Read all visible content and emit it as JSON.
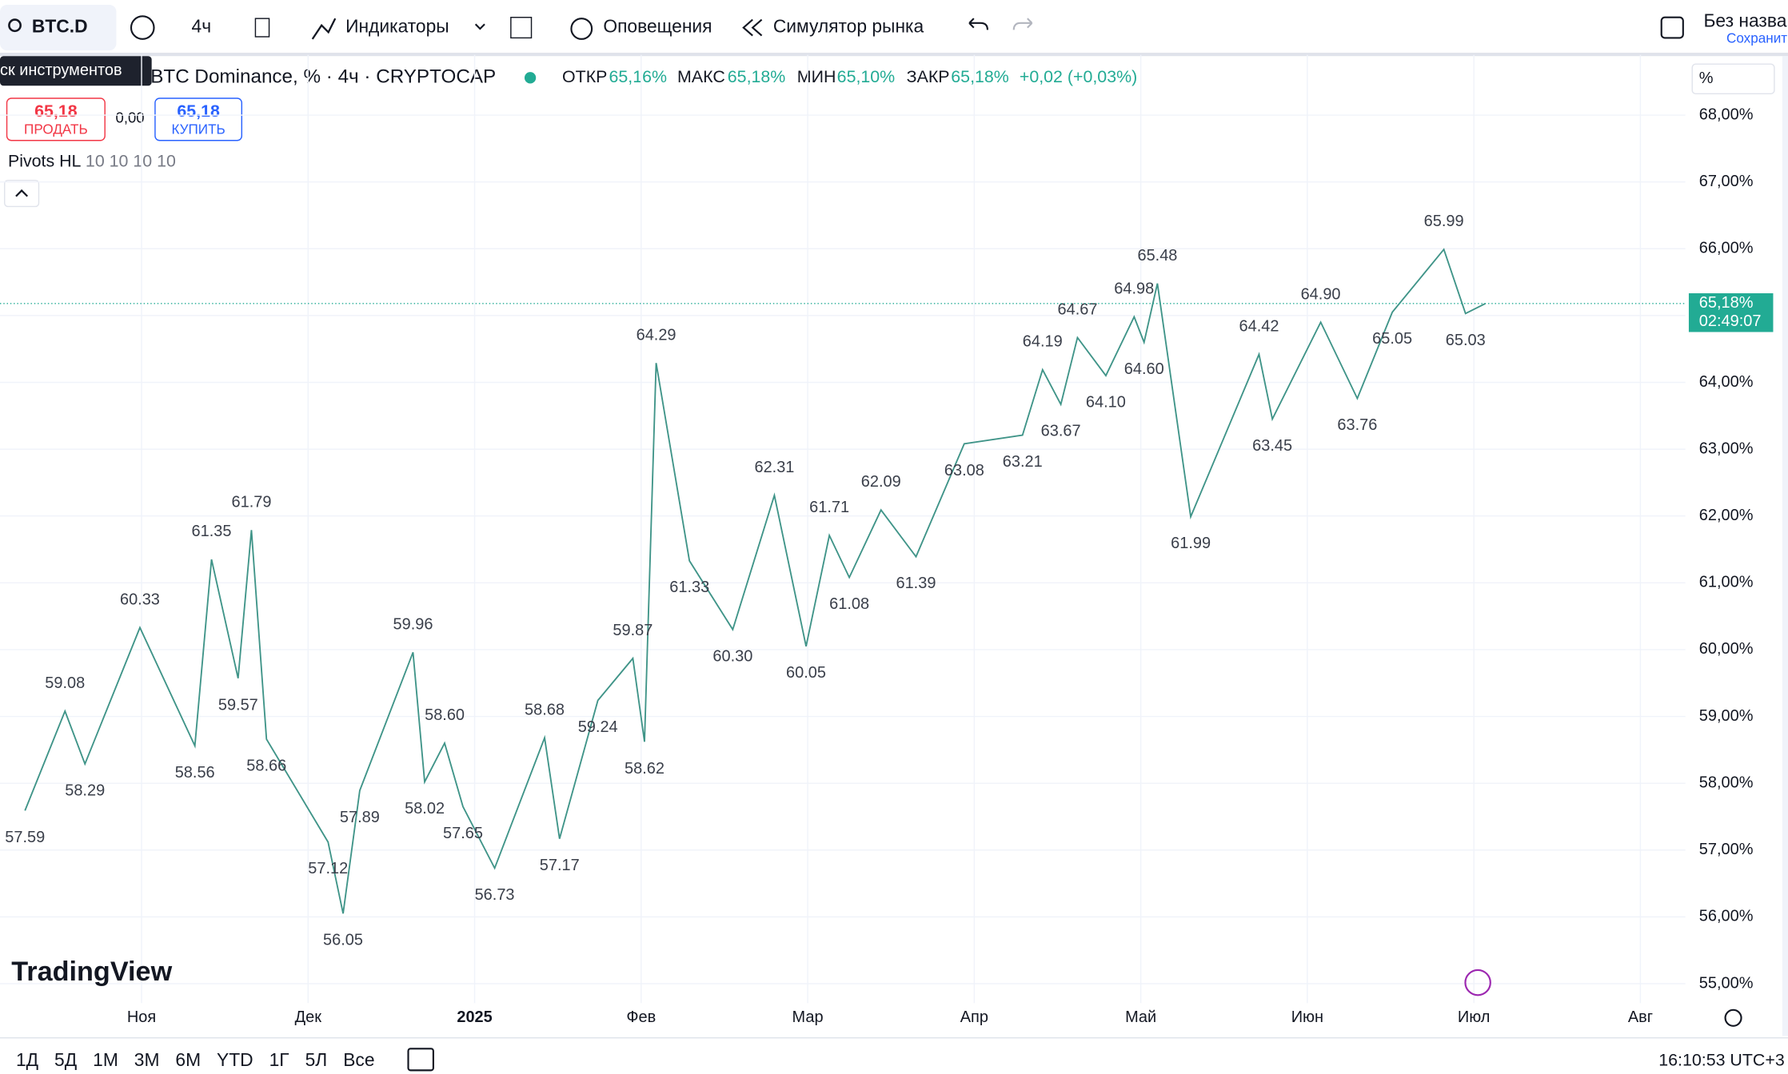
{
  "toolbar": {
    "symbol": "BTC.D",
    "interval": "4ч",
    "indicators": "Индикаторы",
    "alerts": "Оповещения",
    "replay": "Симулятор рынка",
    "layout": "Без назва",
    "save": "Сохранит",
    "tooltip": "ск инструментов"
  },
  "legend": {
    "title": "BTC Dominance, % · 4ч · CRYPTOCAP",
    "o_label": "ОТКР",
    "o": "65,16%",
    "h_label": "МАКС",
    "h": "65,18%",
    "l_label": "МИН",
    "l": "65,10%",
    "c_label": "ЗАКР",
    "c": "65,18%",
    "change": "+0,02 (+0,03%)"
  },
  "trade": {
    "sell_price": "65,18",
    "sell": "ПРОДАТЬ",
    "spread": "0,00",
    "buy_price": "65,18",
    "buy": "КУПИТЬ"
  },
  "indicator": {
    "name": "Pivots HL",
    "params": "10 10 10 10"
  },
  "scale_unit": "%",
  "logo": "TradingView",
  "bottom": {
    "ranges": [
      "1Д",
      "5Д",
      "1М",
      "3М",
      "6М",
      "YTD",
      "1Г",
      "5Л",
      "Все"
    ],
    "time": "16:10:53 UTC+3"
  },
  "chart_data": {
    "type": "line",
    "xlim": [
      10.15,
      20.27
    ],
    "ylim": [
      54.71,
      68.9
    ],
    "xticks": [
      {
        "value": 11,
        "label": "Ноя"
      },
      {
        "value": 12,
        "label": "Дек"
      },
      {
        "value": 13,
        "label": "2025"
      },
      {
        "value": 14,
        "label": "Фев"
      },
      {
        "value": 15,
        "label": "Мар"
      },
      {
        "value": 16,
        "label": "Апр"
      },
      {
        "value": 17,
        "label": "Май"
      },
      {
        "value": 18,
        "label": "Июн"
      },
      {
        "value": 19,
        "label": "Июл"
      },
      {
        "value": 20,
        "label": "Авг"
      }
    ],
    "yticks": [
      {
        "value": 55,
        "label": "55,00%"
      },
      {
        "value": 56,
        "label": "56,00%"
      },
      {
        "value": 57,
        "label": "57,00%"
      },
      {
        "value": 58,
        "label": "58,00%"
      },
      {
        "value": 59,
        "label": "59,00%"
      },
      {
        "value": 60,
        "label": "60,00%"
      },
      {
        "value": 61,
        "label": "61,00%"
      },
      {
        "value": 62,
        "label": "62,00%"
      },
      {
        "value": 63,
        "label": "63,00%"
      },
      {
        "value": 64,
        "label": "64,00%"
      },
      {
        "value": 65,
        "label": "65,00%"
      },
      {
        "value": 66,
        "label": "66,00%"
      },
      {
        "value": 67,
        "label": "67,00%"
      },
      {
        "value": 68,
        "label": "68,00%"
      }
    ],
    "last": {
      "value": 65.18,
      "label": "65,18%",
      "countdown": "02:49:07"
    },
    "series": [
      {
        "name": "BTC.D",
        "color": "#3f9488",
        "x": [
          10.3,
          10.54,
          10.66,
          10.99,
          11.32,
          11.42,
          11.58,
          11.66,
          11.75,
          12.12,
          12.21,
          12.31,
          12.63,
          12.7,
          12.82,
          12.93,
          13.12,
          13.42,
          13.51,
          13.74,
          13.95,
          14.02,
          14.09,
          14.29,
          14.55,
          14.8,
          14.99,
          15.13,
          15.25,
          15.44,
          15.65,
          15.94,
          16.29,
          16.41,
          16.52,
          16.62,
          16.79,
          16.96,
          17.02,
          17.1,
          17.3,
          17.71,
          17.79,
          18.08,
          18.3,
          18.51,
          18.82,
          18.95,
          19.07
        ],
        "values": [
          57.59,
          59.08,
          58.29,
          60.33,
          58.56,
          61.35,
          59.57,
          61.79,
          58.66,
          57.12,
          56.05,
          57.89,
          59.96,
          58.02,
          58.6,
          57.65,
          56.73,
          58.68,
          57.17,
          59.24,
          59.87,
          58.62,
          64.29,
          61.33,
          60.3,
          62.31,
          60.05,
          61.71,
          61.08,
          62.09,
          61.39,
          63.08,
          63.21,
          64.19,
          63.67,
          64.67,
          64.1,
          64.98,
          64.6,
          65.48,
          61.99,
          64.42,
          63.45,
          64.9,
          63.76,
          65.05,
          65.99,
          65.03,
          65.18
        ],
        "value_labels": [
          "57.59",
          "59.08",
          "58.29",
          "60.33",
          "58.56",
          "61.35",
          "59.57",
          "61.79",
          "58.66",
          "57.12",
          "56.05",
          "57.89",
          "59.96",
          "58.02",
          "58.60",
          "57.65",
          "56.73",
          "58.68",
          "57.17",
          "59.24",
          "59.87",
          "58.62",
          "64.29",
          "61.33",
          "60.30",
          "62.31",
          "60.05",
          "61.71",
          "61.08",
          "62.09",
          "61.39",
          "63.08",
          "63.21",
          "64.19",
          "63.67",
          "64.67",
          "64.10",
          "64.98",
          "64.60",
          "65.48",
          "61.99",
          "64.42",
          "63.45",
          "64.90",
          "63.76",
          "65.05",
          "65.99",
          "65.03",
          "65.18"
        ]
      }
    ]
  }
}
